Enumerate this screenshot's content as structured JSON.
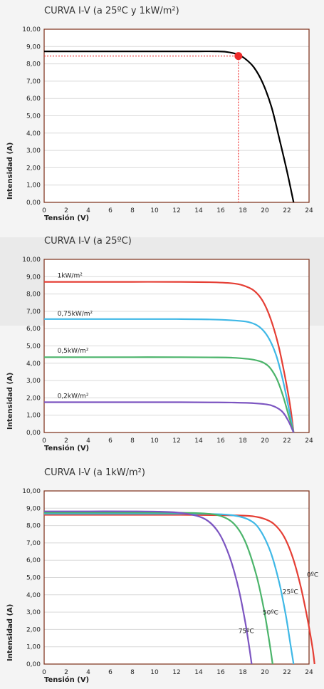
{
  "colors": {
    "red": "#e53f35",
    "blue": "#3fb8e6",
    "green": "#4bb46a",
    "purple": "#7c55c1",
    "black": "#000000",
    "marker": "#ee2b2b",
    "frame": "#7b2c16",
    "grid": "#d9d9d9"
  },
  "chart_data": [
    {
      "type": "line",
      "title": "CURVA I-V (a 25ºC y 1kW/m²)",
      "xlabel": "Tensión (V)",
      "ylabel": "Intensidad (A)",
      "xlim": [
        0,
        24
      ],
      "ylim": [
        0,
        10
      ],
      "xticks": [
        "0",
        "2",
        "4",
        "6",
        "8",
        "10",
        "12",
        "14",
        "16",
        "18",
        "20",
        "22",
        "24"
      ],
      "yticks": [
        "0,00",
        "1,00",
        "2,00",
        "3,00",
        "4,00",
        "5,00",
        "6,00",
        "7,00",
        "8,00",
        "9,00",
        "10,00"
      ],
      "grid": true,
      "series": [
        {
          "color": "black",
          "label": "",
          "x": [
            0,
            2,
            4,
            6,
            8,
            10,
            12,
            14,
            15.5,
            16.5,
            17.5,
            18.2,
            19,
            19.8,
            20.6,
            21.3,
            22,
            22.6
          ],
          "y": [
            8.72,
            8.72,
            8.72,
            8.72,
            8.72,
            8.72,
            8.72,
            8.72,
            8.72,
            8.69,
            8.55,
            8.3,
            7.8,
            6.9,
            5.5,
            3.7,
            1.8,
            0.0
          ]
        }
      ],
      "marker": {
        "x": 17.6,
        "y": 8.45
      }
    },
    {
      "type": "line",
      "title": "CURVA I-V (a 25ºC)",
      "xlabel": "Tensión (V)",
      "ylabel": "Intensidad (A)",
      "xlim": [
        0,
        24
      ],
      "ylim": [
        0,
        10
      ],
      "xticks": [
        "0",
        "2",
        "4",
        "6",
        "8",
        "10",
        "12",
        "14",
        "16",
        "18",
        "20",
        "22",
        "24"
      ],
      "yticks": [
        "0,00",
        "1,00",
        "2,00",
        "3,00",
        "4,00",
        "5,00",
        "6,00",
        "7,00",
        "8,00",
        "9,00",
        "10,00"
      ],
      "grid": true,
      "series": [
        {
          "name": "1kW/m²",
          "color": "red",
          "label": "1kW/m²",
          "label_at": [
            1.2,
            8.95
          ],
          "x": [
            0,
            4,
            8,
            12,
            15,
            17,
            18,
            19,
            19.8,
            20.5,
            21.2,
            21.8,
            22.3,
            22.6
          ],
          "y": [
            8.7,
            8.7,
            8.7,
            8.7,
            8.68,
            8.62,
            8.5,
            8.2,
            7.6,
            6.6,
            5.1,
            3.3,
            1.5,
            0.0
          ]
        },
        {
          "name": "0,75kW/m²",
          "color": "blue",
          "label": "0,75kW/m²",
          "label_at": [
            1.2,
            6.75
          ],
          "x": [
            0,
            4,
            8,
            12,
            15,
            17,
            18.5,
            19.5,
            20.3,
            21,
            21.6,
            22.1,
            22.6
          ],
          "y": [
            6.55,
            6.55,
            6.55,
            6.55,
            6.53,
            6.48,
            6.38,
            6.1,
            5.5,
            4.5,
            3.1,
            1.6,
            0.0
          ]
        },
        {
          "name": "0,5kW/m²",
          "color": "green",
          "label": "0,5kW/m²",
          "label_at": [
            1.2,
            4.6
          ],
          "x": [
            0,
            4,
            8,
            12,
            15,
            17,
            19,
            20.2,
            21,
            21.6,
            22.1,
            22.6
          ],
          "y": [
            4.35,
            4.35,
            4.35,
            4.35,
            4.34,
            4.32,
            4.2,
            3.9,
            3.2,
            2.2,
            1.1,
            0.0
          ]
        },
        {
          "name": "0,2kW/m²",
          "color": "purple",
          "label": "0,2kW/m²",
          "label_at": [
            1.2,
            2.0
          ],
          "x": [
            0,
            4,
            8,
            12,
            15,
            17,
            19,
            20.5,
            21.5,
            22.1,
            22.6
          ],
          "y": [
            1.75,
            1.75,
            1.75,
            1.75,
            1.74,
            1.73,
            1.69,
            1.58,
            1.25,
            0.7,
            0.0
          ]
        }
      ]
    },
    {
      "type": "line",
      "title": "CURVA I-V (a 1kW/m²)",
      "xlabel": "Tensión (V)",
      "ylabel": "Intensidad (A)",
      "xlim": [
        0,
        24
      ],
      "ylim": [
        0,
        10
      ],
      "xticks": [
        "0",
        "2",
        "4",
        "6",
        "8",
        "10",
        "12",
        "14",
        "16",
        "18",
        "20",
        "22",
        "24"
      ],
      "yticks": [
        "0,00",
        "1,00",
        "2,00",
        "3,00",
        "4,00",
        "5,00",
        "6,00",
        "7,00",
        "8,00",
        "9,00",
        "10,00"
      ],
      "grid": true,
      "series": [
        {
          "name": "0ºC",
          "color": "red",
          "label": "0ºC",
          "label_at": [
            23.8,
            5.05
          ],
          "x": [
            0,
            4,
            8,
            12,
            16,
            18.5,
            19.8,
            20.8,
            21.7,
            22.5,
            23.2,
            23.8,
            24.3,
            24.5
          ],
          "y": [
            8.62,
            8.62,
            8.62,
            8.62,
            8.6,
            8.56,
            8.42,
            8.1,
            7.4,
            6.2,
            4.6,
            2.8,
            1.0,
            0.0
          ]
        },
        {
          "name": "25ºC",
          "color": "blue",
          "label": "25ºC",
          "label_at": [
            21.6,
            4.05
          ],
          "x": [
            0,
            4,
            8,
            12,
            15,
            17,
            18.5,
            19.5,
            20.5,
            21.3,
            21.9,
            22.3,
            22.6
          ],
          "y": [
            8.68,
            8.68,
            8.68,
            8.68,
            8.67,
            8.6,
            8.35,
            7.8,
            6.5,
            4.7,
            2.8,
            1.2,
            0.0
          ]
        },
        {
          "name": "50ºC",
          "color": "green",
          "label": "50ºC",
          "label_at": [
            19.8,
            2.85
          ],
          "x": [
            0,
            4,
            8,
            12,
            14.5,
            16,
            17.2,
            18.2,
            19.2,
            19.9,
            20.4,
            20.7
          ],
          "y": [
            8.75,
            8.75,
            8.75,
            8.74,
            8.7,
            8.55,
            8.1,
            7.1,
            5.2,
            3.2,
            1.3,
            0.0
          ]
        },
        {
          "name": "75ºC",
          "color": "purple",
          "label": "75ºC",
          "label_at": [
            17.6,
            1.8
          ],
          "x": [
            0,
            4,
            8,
            10.5,
            12.5,
            14.5,
            15.8,
            16.8,
            17.6,
            18.2,
            18.6,
            18.8
          ],
          "y": [
            8.82,
            8.82,
            8.82,
            8.8,
            8.72,
            8.4,
            7.6,
            6.2,
            4.4,
            2.5,
            0.9,
            0.0
          ]
        }
      ]
    }
  ]
}
